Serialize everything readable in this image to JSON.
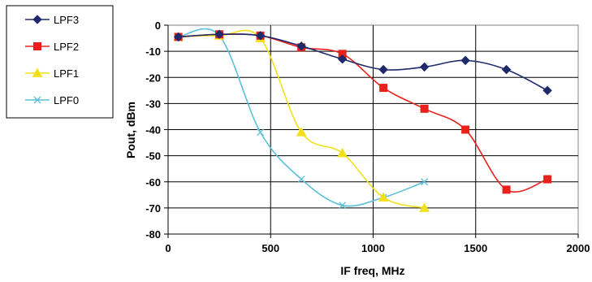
{
  "chart_data": {
    "type": "line",
    "title": "",
    "xlabel": "IF freq, MHz",
    "ylabel": "Pout, dBm",
    "xlim": [
      0,
      2000
    ],
    "ylim": [
      -80,
      0
    ],
    "xticks": [
      "0",
      "500",
      "1000",
      "1500",
      "2000"
    ],
    "yticks": [
      "0",
      "-10",
      "-20",
      "-30",
      "-40",
      "-50",
      "-60",
      "-70",
      "-80"
    ],
    "grid": true,
    "legend_position": "left",
    "series": [
      {
        "name": "LPF3",
        "color": "#1f2a6b",
        "marker": "diamond",
        "x": [
          50,
          250,
          450,
          650,
          850,
          1050,
          1250,
          1450,
          1650,
          1850
        ],
        "y": [
          -4.5,
          -3.5,
          -4,
          -8,
          -13,
          -17,
          -16,
          -13.5,
          -17,
          -25
        ]
      },
      {
        "name": "LPF2",
        "color": "#e8211d",
        "marker": "square",
        "x": [
          50,
          250,
          450,
          650,
          850,
          1050,
          1250,
          1450,
          1650,
          1850
        ],
        "y": [
          -4.5,
          -3.5,
          -4,
          -8.5,
          -11,
          -24,
          -32,
          -40,
          -63,
          -59
        ]
      },
      {
        "name": "LPF1",
        "color": "#f2e01a",
        "marker": "triangle",
        "x": [
          50,
          250,
          450,
          650,
          850,
          1050,
          1250
        ],
        "y": [
          -4.5,
          -4,
          -5,
          -41,
          -49,
          -66,
          -70
        ]
      },
      {
        "name": "LPF0",
        "color": "#5bc0d8",
        "marker": "x",
        "x": [
          50,
          250,
          450,
          650,
          850,
          1050,
          1250
        ],
        "y": [
          -4.5,
          -4,
          -41,
          -59,
          -69,
          -66,
          -60
        ]
      }
    ]
  }
}
